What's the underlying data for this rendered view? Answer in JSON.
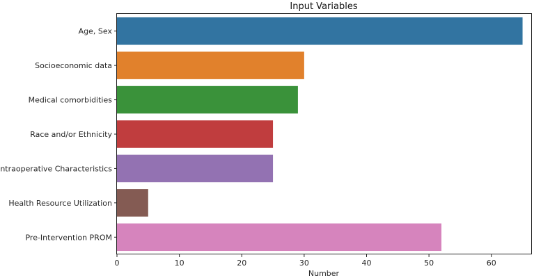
{
  "chart_data": {
    "type": "bar",
    "orientation": "horizontal",
    "title": "Input Variables",
    "xlabel": "Number",
    "ylabel": "",
    "xlim": [
      0,
      66.5
    ],
    "xticks": [
      0,
      10,
      20,
      30,
      40,
      50,
      60
    ],
    "grid": false,
    "categories": [
      "Age, Sex",
      "Socioeconomic data",
      "Medical comorbidities",
      "Race and/or Ethnicity",
      "Intraoperative Characteristics",
      "Health Resource Utilization",
      "Pre-Intervention PROM"
    ],
    "values": [
      65,
      30,
      29,
      25,
      25,
      5,
      52
    ],
    "colors": [
      "#3274a1",
      "#e1812c",
      "#3a923a",
      "#c03d3e",
      "#9372b2",
      "#845b53",
      "#d684bd"
    ]
  }
}
